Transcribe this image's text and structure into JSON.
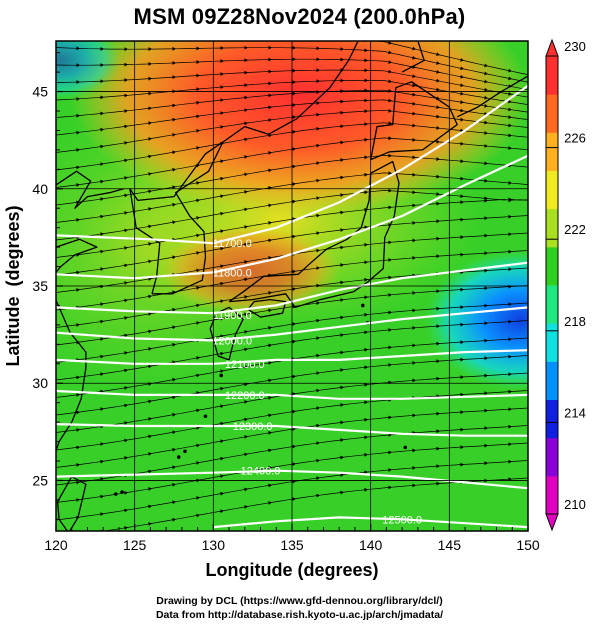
{
  "title": "MSM 09Z28Nov2024 (200.0hPa)",
  "map": {
    "xlabel": "Longitude (degrees)",
    "ylabel": "Latitude  (degrees)",
    "lon_ticks": [
      "120",
      "125",
      "130",
      "135",
      "140",
      "145",
      "150"
    ],
    "lat_ticks": [
      "25",
      "30",
      "35",
      "40",
      "45"
    ],
    "xlim": [
      120,
      150
    ],
    "ylim": [
      22.4,
      47.6
    ],
    "grid": true
  },
  "colorbar": {
    "min": 210,
    "max": 230,
    "tick_labels": [
      "230",
      "226",
      "222",
      "218",
      "214",
      "210"
    ],
    "colors": [
      "#e000c0",
      "#8a00d8",
      "#1020e0",
      "#0090ff",
      "#10e0e0",
      "#20e880",
      "#30d020",
      "#a8e020",
      "#f0e820",
      "#ffb020",
      "#ff6a20",
      "#ff3030"
    ]
  },
  "contours": {
    "color": "#ffffff",
    "labels": [
      {
        "text": "11700.0",
        "lon": 131.2,
        "lat": 37.2
      },
      {
        "text": "11800.0",
        "lon": 131.2,
        "lat": 35.7
      },
      {
        "text": "11900.0",
        "lon": 131.2,
        "lat": 33.5
      },
      {
        "text": "12000.0",
        "lon": 131.2,
        "lat": 32.2
      },
      {
        "text": "12100.0",
        "lon": 132.0,
        "lat": 31.0
      },
      {
        "text": "12200.0",
        "lon": 132.0,
        "lat": 29.4
      },
      {
        "text": "12300.0",
        "lon": 132.5,
        "lat": 27.8
      },
      {
        "text": "12400.0",
        "lon": 133.0,
        "lat": 25.5
      },
      {
        "text": "12500.0",
        "lon": 142.0,
        "lat": 23.0
      }
    ]
  },
  "credits": {
    "line1": "Drawing by DCL (https://www.gfd-dennou.org/library/dcl/)",
    "line2": "Data from http://database.rish.kyoto-u.ac.jp/arch/jmadata/"
  }
}
